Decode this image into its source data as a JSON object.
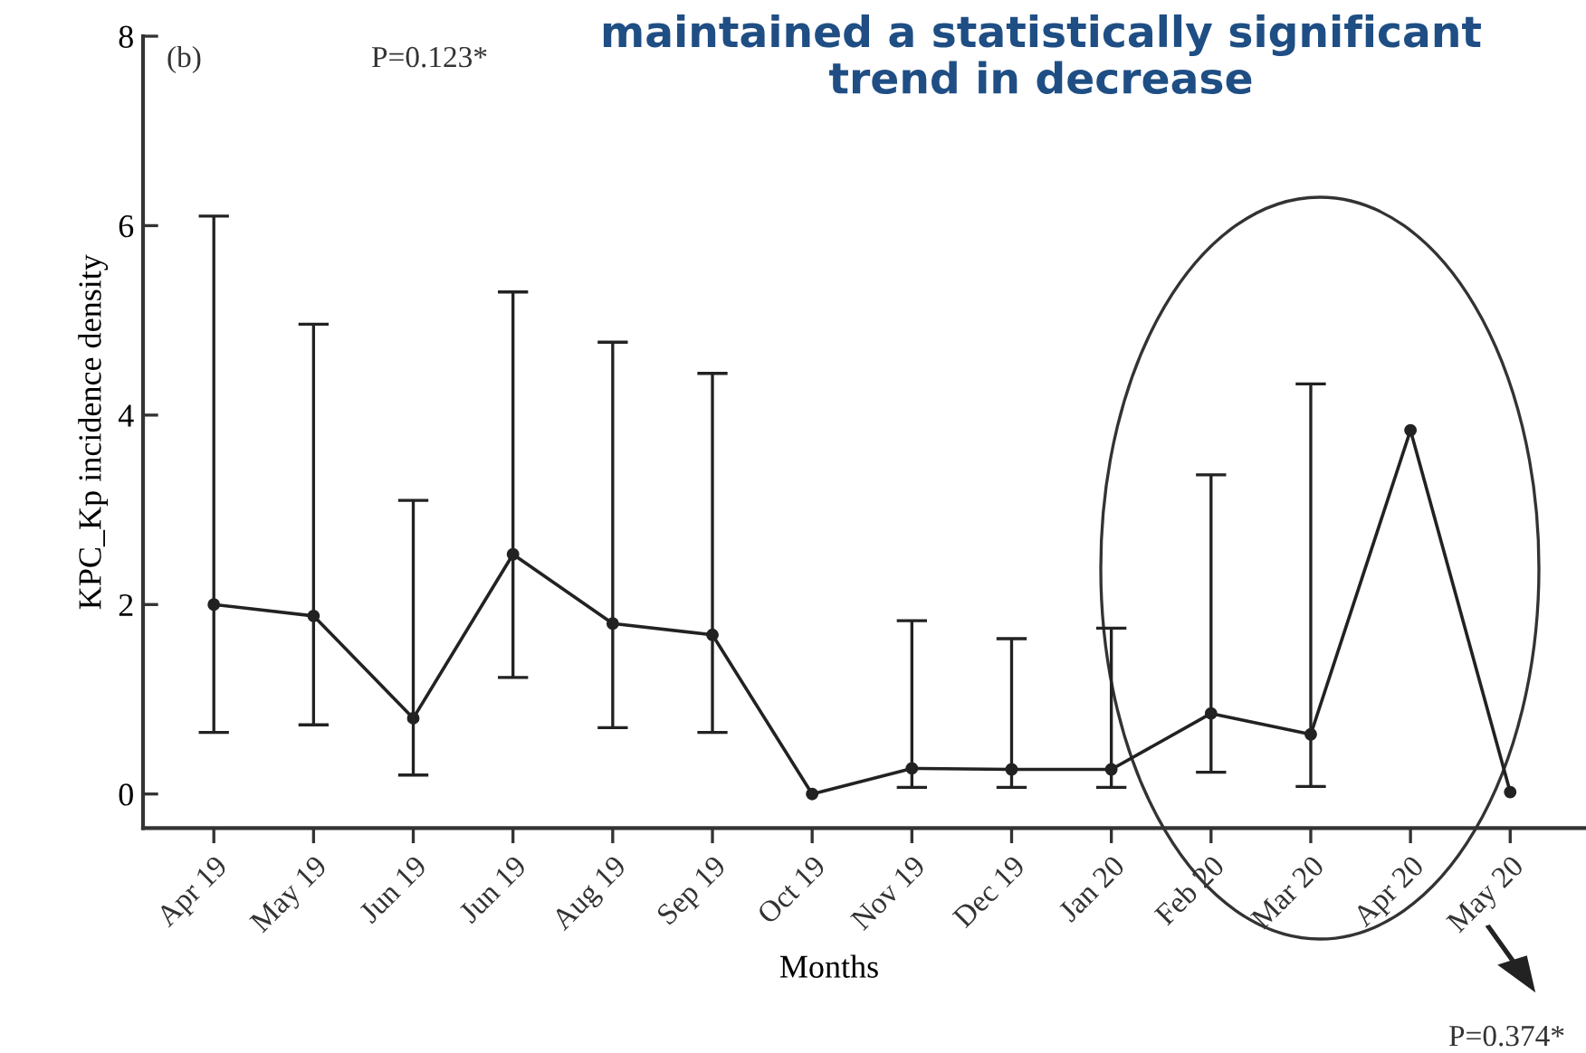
{
  "chart_data": {
    "type": "line",
    "title": "maintained a statistically significant\ntrend in decrease",
    "xlabel": "Months",
    "ylabel": "KPC_Kp incidence density",
    "categories": [
      "Apr 19",
      "May 19",
      "Jun 19",
      "Jun 19",
      "Aug 19",
      "Sep 19",
      "Oct 19",
      "Nov 19",
      "Dec 19",
      "Jan 20",
      "Feb 20",
      "Mar 20",
      "Apr 20",
      "May 20"
    ],
    "series": [
      {
        "color": "#222222",
        "values": [
          2.0,
          1.88,
          0.8,
          2.53,
          1.8,
          1.68,
          0.0,
          0.27,
          0.26,
          0.26,
          0.85,
          0.63,
          3.84,
          0.02
        ],
        "errors": [
          [
            0.65,
            6.1
          ],
          [
            0.73,
            4.96
          ],
          [
            0.2,
            3.1
          ],
          [
            1.23,
            5.3
          ],
          [
            0.7,
            4.77
          ],
          [
            0.65,
            4.44
          ],
          null,
          [
            0.07,
            1.83
          ],
          [
            0.07,
            1.64
          ],
          [
            0.07,
            1.75
          ],
          [
            0.23,
            3.37
          ],
          [
            0.08,
            4.33
          ],
          null,
          null
        ]
      }
    ],
    "ylim": [
      -0.36,
      8
    ],
    "yticks": [
      0,
      2,
      4,
      6,
      8
    ],
    "marker": "circle",
    "line_style": "solid",
    "grid": false,
    "legend": false,
    "annotations": [
      "(b)",
      "P=0.123*",
      "P=0.374*"
    ]
  }
}
